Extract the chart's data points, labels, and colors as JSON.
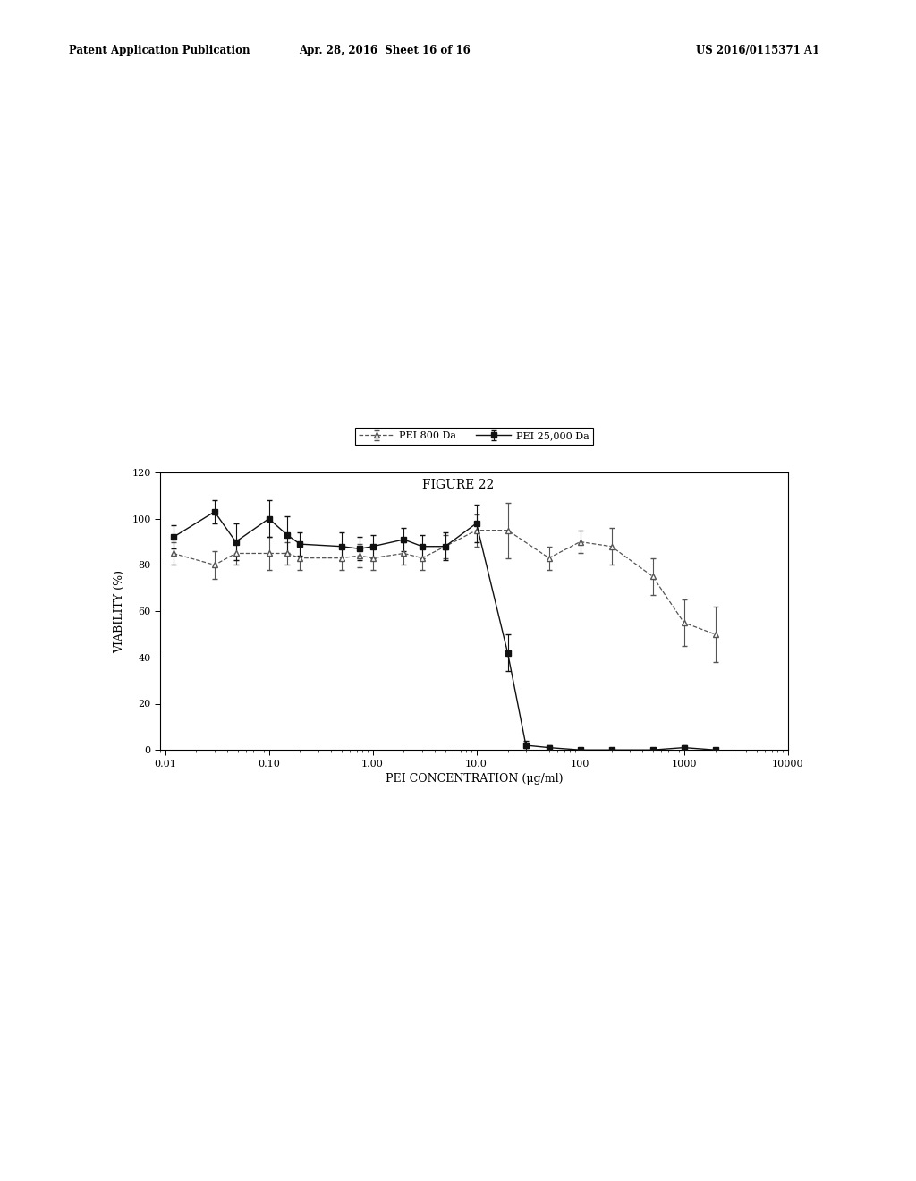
{
  "title": "FIGURE 22",
  "xlabel": "PEI CONCENTRATION (μg/ml)",
  "ylabel": "VIABILITY (%)",
  "ylim": [
    0,
    120
  ],
  "yticks": [
    0,
    20,
    40,
    60,
    80,
    100,
    120
  ],
  "xtick_labels": [
    "0.01",
    "0.10",
    "1.00",
    "10.0",
    "100",
    "1000",
    "10000"
  ],
  "xtick_values": [
    0.01,
    0.1,
    1.0,
    10.0,
    100,
    1000,
    10000
  ],
  "header_left": "Patent Application Publication",
  "header_center": "Apr. 28, 2016  Sheet 16 of 16",
  "header_right": "US 2016/0115371 A1",
  "legend_label_1": "PEI 800 Da",
  "legend_label_2": "PEI 25,000 Da",
  "series1_x": [
    0.012,
    0.03,
    0.048,
    0.1,
    0.15,
    0.2,
    0.5,
    0.75,
    1.0,
    2.0,
    3.0,
    5.0,
    10.0,
    20.0,
    50.0,
    100,
    200,
    500,
    1000,
    2000
  ],
  "series1_y": [
    85,
    80,
    85,
    85,
    85,
    83,
    83,
    84,
    83,
    85,
    83,
    88,
    95,
    95,
    83,
    90,
    88,
    75,
    55,
    50
  ],
  "series1_yerr": [
    5,
    6,
    5,
    7,
    5,
    5,
    5,
    5,
    5,
    5,
    5,
    5,
    7,
    12,
    5,
    5,
    8,
    8,
    10,
    12
  ],
  "series2_x": [
    0.012,
    0.03,
    0.048,
    0.1,
    0.15,
    0.2,
    0.5,
    0.75,
    1.0,
    2.0,
    3.0,
    5.0,
    10.0,
    20.0,
    30.0,
    50.0,
    100,
    200,
    500,
    1000,
    2000
  ],
  "series2_y": [
    92,
    103,
    90,
    100,
    93,
    89,
    88,
    87,
    88,
    91,
    88,
    88,
    98,
    42,
    2,
    1,
    0,
    0,
    0,
    1,
    0
  ],
  "series2_yerr": [
    5,
    5,
    8,
    8,
    8,
    5,
    6,
    5,
    5,
    5,
    5,
    6,
    8,
    8,
    2,
    1,
    1,
    1,
    1,
    1,
    1
  ],
  "color1": "#555555",
  "color2": "#111111",
  "bg_color": "#ffffff",
  "plot_bg": "#ffffff"
}
